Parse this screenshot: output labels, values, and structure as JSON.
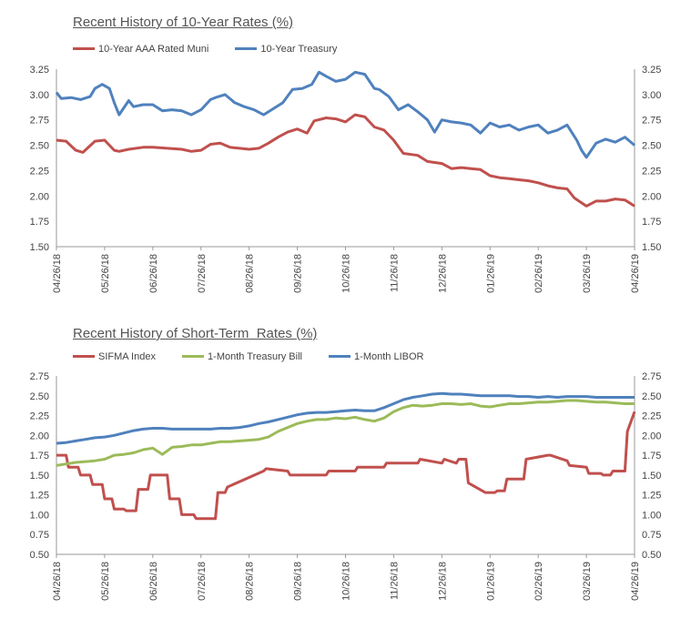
{
  "colors": {
    "red": "#c0504d",
    "blue": "#4f81bd",
    "green": "#9bbb59",
    "axis": "#999999"
  },
  "chart_data": [
    {
      "type": "line",
      "title": "Recent History of 10-Year Rates (%)",
      "ylim": [
        1.5,
        3.25
      ],
      "yticks": [
        "3.25",
        "3.00",
        "2.75",
        "2.50",
        "2.25",
        "2.00",
        "1.75",
        "1.50"
      ],
      "ytick_values": [
        3.25,
        3.0,
        2.75,
        2.5,
        2.25,
        2.0,
        1.75,
        1.5
      ],
      "x_tick_labels": [
        "04/26/18",
        "05/26/18",
        "06/26/18",
        "07/26/18",
        "08/26/18",
        "09/26/18",
        "10/26/18",
        "11/26/18",
        "12/26/18",
        "01/26/19",
        "02/26/19",
        "03/26/19",
        "04/26/19"
      ],
      "x_range": [
        0,
        12
      ],
      "grid": false,
      "legend_position": "top-left",
      "series": [
        {
          "name": "10-Year AAA Rated Muni",
          "color": "#c0504d",
          "x": [
            0,
            0.2,
            0.4,
            0.55,
            0.8,
            1.0,
            1.2,
            1.3,
            1.5,
            1.8,
            2.0,
            2.3,
            2.6,
            2.8,
            3.0,
            3.2,
            3.4,
            3.6,
            3.8,
            4.0,
            4.2,
            4.4,
            4.6,
            4.8,
            5.0,
            5.2,
            5.35,
            5.6,
            5.8,
            6.0,
            6.2,
            6.4,
            6.6,
            6.8,
            7.0,
            7.2,
            7.5,
            7.7,
            7.85,
            8.0,
            8.2,
            8.4,
            8.6,
            8.8,
            9.0,
            9.2,
            9.4,
            9.6,
            9.8,
            10.0,
            10.2,
            10.4,
            10.6,
            10.75,
            11.0,
            11.2,
            11.4,
            11.6,
            11.8,
            12.0
          ],
          "values": [
            2.55,
            2.54,
            2.45,
            2.43,
            2.54,
            2.55,
            2.45,
            2.44,
            2.46,
            2.48,
            2.48,
            2.47,
            2.46,
            2.44,
            2.45,
            2.51,
            2.52,
            2.48,
            2.47,
            2.46,
            2.47,
            2.52,
            2.58,
            2.63,
            2.66,
            2.62,
            2.74,
            2.77,
            2.76,
            2.73,
            2.8,
            2.78,
            2.68,
            2.65,
            2.55,
            2.42,
            2.4,
            2.34,
            2.33,
            2.32,
            2.27,
            2.28,
            2.27,
            2.26,
            2.2,
            2.18,
            2.17,
            2.16,
            2.15,
            2.13,
            2.1,
            2.08,
            2.07,
            1.98,
            1.9,
            1.95,
            1.95,
            1.97,
            1.96,
            1.9
          ]
        },
        {
          "name": "10-Year Treasury",
          "color": "#4f81bd",
          "x": [
            0,
            0.1,
            0.3,
            0.5,
            0.7,
            0.8,
            0.95,
            1.1,
            1.2,
            1.3,
            1.5,
            1.6,
            1.8,
            2.0,
            2.2,
            2.4,
            2.6,
            2.8,
            3.0,
            3.2,
            3.3,
            3.5,
            3.7,
            3.9,
            4.1,
            4.3,
            4.5,
            4.7,
            4.9,
            5.1,
            5.3,
            5.45,
            5.6,
            5.8,
            6.0,
            6.2,
            6.4,
            6.6,
            6.7,
            6.9,
            7.1,
            7.3,
            7.5,
            7.7,
            7.85,
            8.0,
            8.2,
            8.4,
            8.6,
            8.8,
            9.0,
            9.2,
            9.4,
            9.6,
            9.8,
            10.0,
            10.2,
            10.4,
            10.6,
            10.8,
            10.9,
            11.0,
            11.2,
            11.4,
            11.6,
            11.8,
            11.9,
            12.0
          ],
          "values": [
            3.02,
            2.96,
            2.97,
            2.95,
            2.98,
            3.06,
            3.1,
            3.06,
            2.92,
            2.8,
            2.94,
            2.88,
            2.9,
            2.9,
            2.84,
            2.85,
            2.84,
            2.8,
            2.85,
            2.95,
            2.97,
            3.0,
            2.92,
            2.88,
            2.85,
            2.8,
            2.86,
            2.92,
            3.05,
            3.06,
            3.1,
            3.22,
            3.18,
            3.13,
            3.15,
            3.22,
            3.2,
            3.06,
            3.05,
            2.98,
            2.85,
            2.9,
            2.83,
            2.75,
            2.63,
            2.75,
            2.73,
            2.72,
            2.7,
            2.62,
            2.72,
            2.68,
            2.7,
            2.65,
            2.68,
            2.7,
            2.62,
            2.65,
            2.7,
            2.55,
            2.45,
            2.38,
            2.52,
            2.56,
            2.53,
            2.58,
            2.54,
            2.5
          ]
        }
      ]
    },
    {
      "type": "line",
      "title": "Recent History of Short-Term  Rates (%)",
      "ylim": [
        0.5,
        2.75
      ],
      "yticks": [
        "2.75",
        "2.50",
        "2.25",
        "2.00",
        "1.75",
        "1.50",
        "1.25",
        "1.00",
        "0.75",
        "0.50"
      ],
      "ytick_values": [
        2.75,
        2.5,
        2.25,
        2.0,
        1.75,
        1.5,
        1.25,
        1.0,
        0.75,
        0.5
      ],
      "x_tick_labels": [
        "04/26/18",
        "05/26/18",
        "06/26/18",
        "07/26/18",
        "08/26/18",
        "09/26/18",
        "10/26/18",
        "11/26/18",
        "12/26/18",
        "01/26/19",
        "02/26/19",
        "03/26/19",
        "04/26/19"
      ],
      "x_range": [
        0,
        12
      ],
      "grid": false,
      "legend_position": "top-left",
      "series": [
        {
          "name": "SIFMA Index",
          "color": "#c0504d",
          "x": [
            0,
            0.2,
            0.25,
            0.45,
            0.5,
            0.7,
            0.75,
            0.95,
            1.0,
            1.15,
            1.2,
            1.4,
            1.45,
            1.65,
            1.7,
            1.9,
            1.95,
            2.3,
            2.35,
            2.55,
            2.6,
            2.85,
            2.9,
            3.3,
            3.35,
            3.5,
            3.55,
            4.3,
            4.35,
            4.8,
            4.85,
            5.6,
            5.65,
            6.2,
            6.25,
            6.8,
            6.85,
            7.5,
            7.55,
            8.0,
            8.05,
            8.3,
            8.35,
            8.5,
            8.55,
            8.9,
            8.95,
            9.1,
            9.15,
            9.3,
            9.35,
            9.7,
            9.75,
            10.2,
            10.25,
            10.6,
            10.65,
            11.0,
            11.05,
            11.3,
            11.35,
            11.5,
            11.55,
            11.8,
            11.85,
            12.0
          ],
          "values": [
            1.75,
            1.75,
            1.6,
            1.6,
            1.5,
            1.5,
            1.38,
            1.38,
            1.2,
            1.2,
            1.07,
            1.07,
            1.05,
            1.05,
            1.32,
            1.32,
            1.5,
            1.5,
            1.2,
            1.2,
            1.0,
            1.0,
            0.95,
            0.95,
            1.28,
            1.28,
            1.35,
            1.55,
            1.58,
            1.55,
            1.5,
            1.5,
            1.55,
            1.55,
            1.6,
            1.6,
            1.65,
            1.65,
            1.7,
            1.65,
            1.7,
            1.65,
            1.7,
            1.7,
            1.4,
            1.28,
            1.28,
            1.28,
            1.3,
            1.3,
            1.45,
            1.45,
            1.7,
            1.75,
            1.75,
            1.68,
            1.62,
            1.6,
            1.52,
            1.52,
            1.5,
            1.5,
            1.55,
            1.55,
            2.05,
            2.3
          ]
        },
        {
          "name": "1-Month Treasury Bill",
          "color": "#9bbb59",
          "x": [
            0,
            0.2,
            0.4,
            0.6,
            0.8,
            1.0,
            1.2,
            1.4,
            1.6,
            1.8,
            2.0,
            2.2,
            2.4,
            2.6,
            2.8,
            3.0,
            3.2,
            3.4,
            3.6,
            3.8,
            4.0,
            4.2,
            4.4,
            4.6,
            4.8,
            5.0,
            5.2,
            5.4,
            5.6,
            5.8,
            6.0,
            6.2,
            6.4,
            6.6,
            6.8,
            7.0,
            7.2,
            7.4,
            7.6,
            7.8,
            8.0,
            8.2,
            8.4,
            8.6,
            8.8,
            9.0,
            9.2,
            9.4,
            9.6,
            9.8,
            10.0,
            10.2,
            10.4,
            10.6,
            10.8,
            11.0,
            11.2,
            11.4,
            11.6,
            11.8,
            12.0
          ],
          "values": [
            1.62,
            1.64,
            1.66,
            1.67,
            1.68,
            1.7,
            1.75,
            1.76,
            1.78,
            1.82,
            1.84,
            1.76,
            1.85,
            1.86,
            1.88,
            1.88,
            1.9,
            1.92,
            1.92,
            1.93,
            1.94,
            1.95,
            1.98,
            2.05,
            2.1,
            2.15,
            2.18,
            2.2,
            2.2,
            2.22,
            2.21,
            2.23,
            2.2,
            2.18,
            2.22,
            2.3,
            2.35,
            2.38,
            2.37,
            2.38,
            2.4,
            2.4,
            2.39,
            2.4,
            2.37,
            2.36,
            2.38,
            2.4,
            2.4,
            2.41,
            2.42,
            2.42,
            2.43,
            2.44,
            2.44,
            2.43,
            2.42,
            2.42,
            2.41,
            2.4,
            2.4
          ]
        },
        {
          "name": "1-Month LIBOR",
          "color": "#4f81bd",
          "x": [
            0,
            0.2,
            0.4,
            0.6,
            0.8,
            1.0,
            1.2,
            1.4,
            1.6,
            1.8,
            2.0,
            2.2,
            2.4,
            2.6,
            2.8,
            3.0,
            3.2,
            3.4,
            3.6,
            3.8,
            4.0,
            4.2,
            4.4,
            4.6,
            4.8,
            5.0,
            5.2,
            5.4,
            5.6,
            5.8,
            6.0,
            6.2,
            6.4,
            6.6,
            6.8,
            7.0,
            7.2,
            7.4,
            7.6,
            7.8,
            8.0,
            8.2,
            8.4,
            8.6,
            8.8,
            9.0,
            9.2,
            9.4,
            9.6,
            9.8,
            10.0,
            10.2,
            10.4,
            10.6,
            10.8,
            11.0,
            11.2,
            11.4,
            11.6,
            11.8,
            12.0
          ],
          "values": [
            1.9,
            1.91,
            1.93,
            1.95,
            1.97,
            1.98,
            2.0,
            2.03,
            2.06,
            2.08,
            2.09,
            2.09,
            2.08,
            2.08,
            2.08,
            2.08,
            2.08,
            2.09,
            2.09,
            2.1,
            2.12,
            2.15,
            2.17,
            2.2,
            2.23,
            2.26,
            2.28,
            2.29,
            2.29,
            2.3,
            2.31,
            2.32,
            2.31,
            2.31,
            2.35,
            2.4,
            2.45,
            2.48,
            2.5,
            2.52,
            2.53,
            2.52,
            2.52,
            2.51,
            2.5,
            2.5,
            2.5,
            2.5,
            2.49,
            2.49,
            2.48,
            2.49,
            2.48,
            2.49,
            2.49,
            2.49,
            2.48,
            2.48,
            2.48,
            2.48,
            2.48
          ]
        }
      ]
    }
  ]
}
